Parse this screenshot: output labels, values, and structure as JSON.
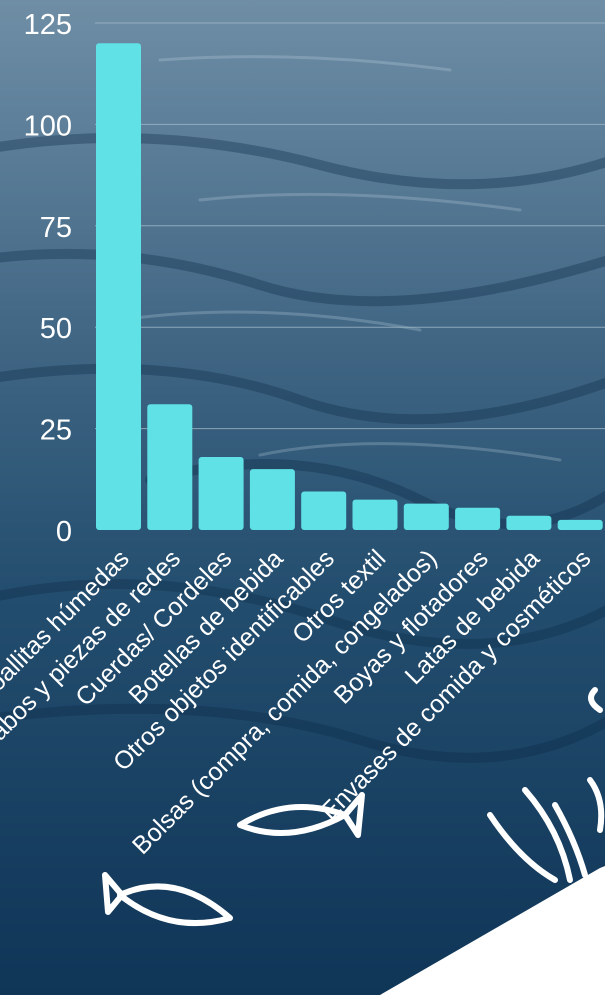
{
  "chart_data": {
    "type": "bar",
    "categories": [
      "Toallitas húmedas",
      "Cabos y piezas de redes",
      "Cuerdas/ Cordeles",
      "Botellas de bebida",
      "Otros objetos identificables",
      "Otros textil",
      "Bolsas (compra, comida, congelados)",
      "Boyas y flotadores",
      "Latas de bebida",
      "Envases de comida y cosméticos"
    ],
    "values": [
      120,
      31,
      18,
      15,
      9.5,
      7.5,
      6.5,
      5.5,
      3.5,
      2.5
    ],
    "ylim": [
      0,
      125
    ],
    "yticks": [
      "0",
      "25",
      "50",
      "75",
      "100",
      "125"
    ],
    "grid": true,
    "colors": {
      "bar": "#5fe1e6",
      "grid": "#9fb7c8",
      "text": "#ffffff"
    }
  },
  "decorations": {
    "icons": [
      "fish-icon",
      "fish-icon",
      "seaweed-icon"
    ]
  }
}
